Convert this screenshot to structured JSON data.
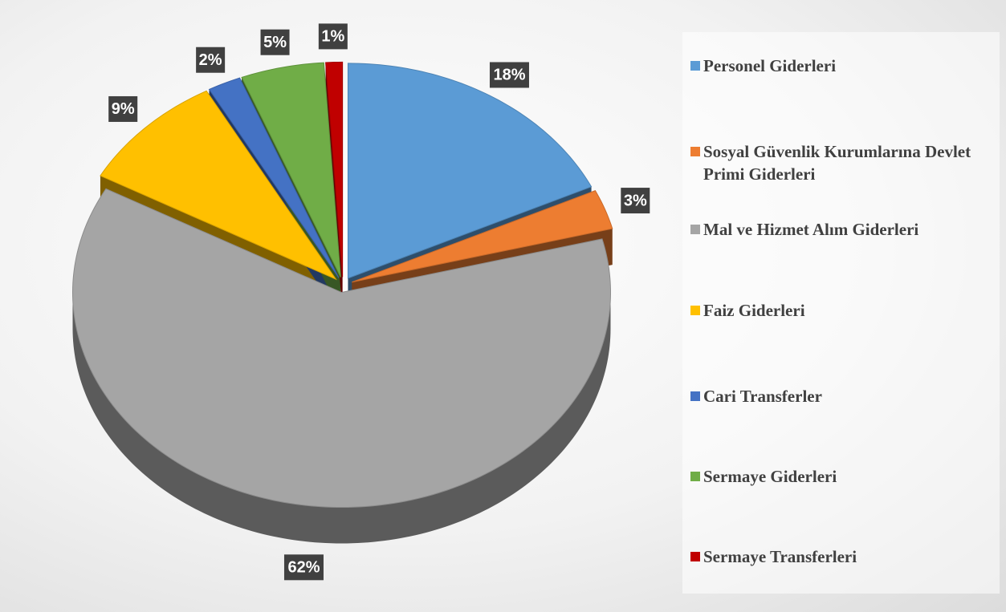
{
  "chart_data": {
    "type": "pie3d",
    "categories": [
      "Personel Giderleri",
      "Sosyal Güvenlik Kurumlarına Devlet Primi Giderleri",
      "Mal ve Hizmet Alım Giderleri",
      "Faiz Giderleri",
      "Cari Transferler",
      "Sermaye Giderleri",
      "Sermaye Transferleri"
    ],
    "values": [
      18,
      3,
      62,
      9,
      2,
      5,
      1
    ],
    "value_labels": [
      "18%",
      "3%",
      "62%",
      "9%",
      "2%",
      "5%",
      "1%"
    ],
    "colors": [
      "#5b9bd5",
      "#ed7d31",
      "#a5a5a5",
      "#ffc000",
      "#4472c4",
      "#70ad47",
      "#c00000"
    ],
    "legend": "right"
  }
}
